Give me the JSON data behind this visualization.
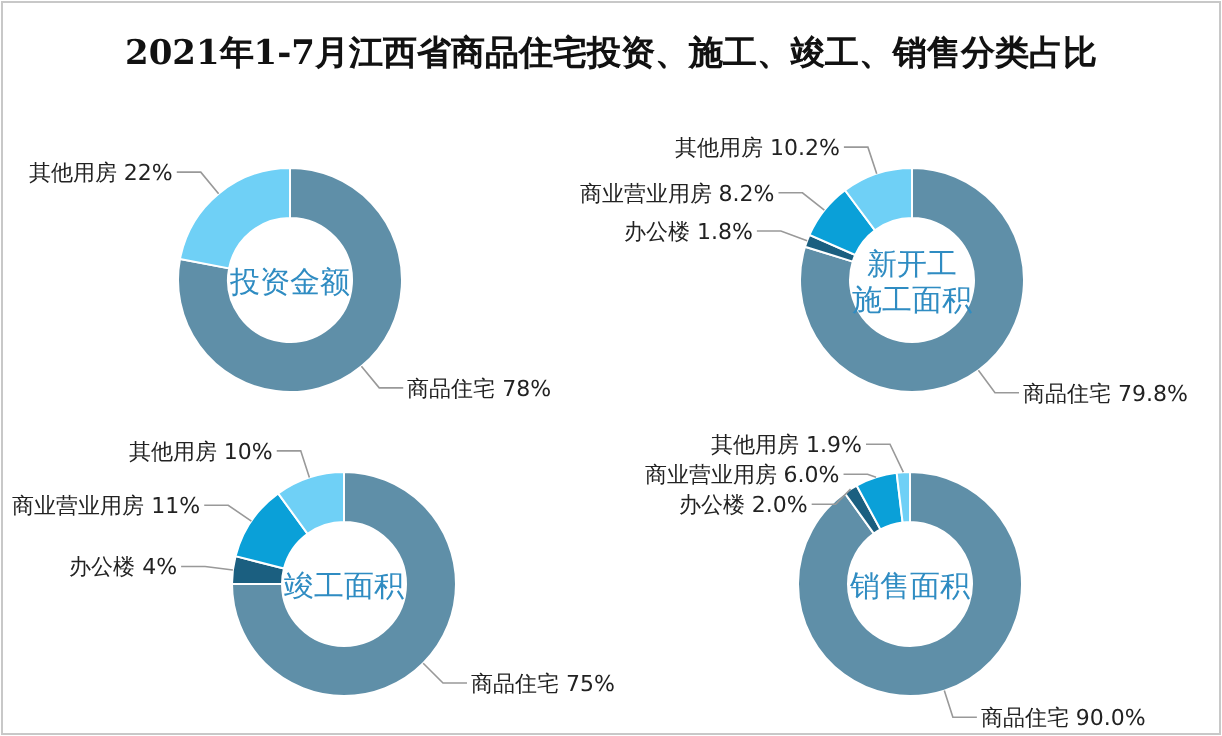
{
  "chart_data": [
    {
      "type": "other",
      "title": "2021年1-7月江西省商品住宅投资、施工、竣工、销售分类占比"
    },
    {
      "type": "donut",
      "title": "投资金额",
      "categories": [
        "商品住宅",
        "其他用房"
      ],
      "values": [
        78,
        22
      ],
      "value_labels": [
        "78%",
        "22%"
      ],
      "colors": [
        "#5f8fa8",
        "#6fd0f6"
      ]
    },
    {
      "type": "donut",
      "title": "新开工施工面积",
      "categories": [
        "商品住宅",
        "办公楼",
        "商业营业用房",
        "其他用房"
      ],
      "values": [
        79.8,
        1.8,
        8.2,
        10.2
      ],
      "value_labels": [
        "79.8%",
        "1.8%",
        "8.2%",
        "10.2%"
      ],
      "colors": [
        "#5f8fa8",
        "#1b5f80",
        "#0aa0d8",
        "#6fd0f6"
      ]
    },
    {
      "type": "donut",
      "title": "竣工面积",
      "categories": [
        "商品住宅",
        "办公楼",
        "商业营业用房",
        "其他用房"
      ],
      "values": [
        75,
        4,
        11,
        10
      ],
      "value_labels": [
        "75%",
        "4%",
        "11%",
        "10%"
      ],
      "colors": [
        "#5f8fa8",
        "#1b5f80",
        "#0aa0d8",
        "#6fd0f6"
      ]
    },
    {
      "type": "donut",
      "title": "销售面积",
      "categories": [
        "商品住宅",
        "办公楼",
        "商业营业用房",
        "其他用房"
      ],
      "values": [
        90.0,
        2.0,
        6.0,
        1.9
      ],
      "value_labels": [
        "90.0%",
        "2.0%",
        "6.0%",
        "1.9%"
      ],
      "colors": [
        "#5f8fa8",
        "#1b5f80",
        "#0aa0d8",
        "#6fd0f6"
      ]
    }
  ]
}
